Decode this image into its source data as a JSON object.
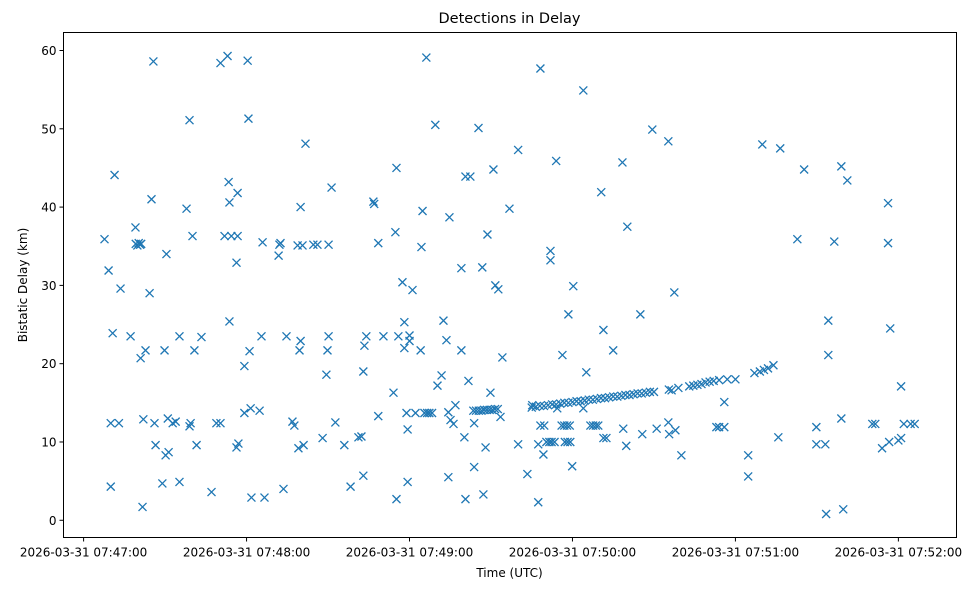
{
  "chart_data": {
    "type": "scatter",
    "title": "Detections in Delay",
    "xlabel": "Time (UTC)",
    "ylabel": "Bistatic Delay (km)",
    "x_unit": "seconds after 2026-03-31 07:47:00",
    "xlim": [
      -7.4,
      321.4
    ],
    "ylim": [
      -2.2,
      62.3
    ],
    "x_ticks": [
      {
        "value": 0,
        "label": "2026-03-31 07:47:00"
      },
      {
        "value": 60,
        "label": "2026-03-31 07:48:00"
      },
      {
        "value": 120,
        "label": "2026-03-31 07:49:00"
      },
      {
        "value": 180,
        "label": "2026-03-31 07:50:00"
      },
      {
        "value": 240,
        "label": "2026-03-31 07:51:00"
      },
      {
        "value": 300,
        "label": "2026-03-31 07:52:00"
      }
    ],
    "y_ticks": [
      {
        "value": 0,
        "label": "0"
      },
      {
        "value": 10,
        "label": "10"
      },
      {
        "value": 20,
        "label": "20"
      },
      {
        "value": 30,
        "label": "30"
      },
      {
        "value": 40,
        "label": "40"
      },
      {
        "value": 50,
        "label": "50"
      },
      {
        "value": 60,
        "label": "60"
      }
    ],
    "grid": false,
    "marker": "x",
    "color": "#1f77b4",
    "points": [
      [
        7.7,
        35.9
      ],
      [
        9.2,
        31.9
      ],
      [
        10,
        4.3
      ],
      [
        10,
        12.4
      ],
      [
        10.7,
        23.9
      ],
      [
        11.4,
        44.1
      ],
      [
        13,
        12.4
      ],
      [
        13.6,
        29.6
      ],
      [
        17.3,
        23.5
      ],
      [
        19.1,
        37.4
      ],
      [
        19.2,
        35.3
      ],
      [
        19.8,
        35.1
      ],
      [
        20.3,
        35.4
      ],
      [
        20.8,
        35.2
      ],
      [
        21.2,
        35.3
      ],
      [
        21,
        20.7
      ],
      [
        21.7,
        1.7
      ],
      [
        22,
        12.9
      ],
      [
        22.8,
        21.7
      ],
      [
        24.3,
        29.0
      ],
      [
        25,
        41.0
      ],
      [
        25.7,
        58.6
      ],
      [
        26.1,
        12.4
      ],
      [
        26.5,
        9.6
      ],
      [
        30.5,
        34.0
      ],
      [
        29,
        4.7
      ],
      [
        29.8,
        21.7
      ],
      [
        30.2,
        8.3
      ],
      [
        31,
        13
      ],
      [
        31.3,
        8.7
      ],
      [
        32.8,
        12.4
      ],
      [
        33.9,
        12.6
      ],
      [
        35.3,
        23.5
      ],
      [
        35.3,
        4.9
      ],
      [
        37.9,
        39.8
      ],
      [
        39,
        51.1
      ],
      [
        39,
        12.0
      ],
      [
        39.4,
        12.4
      ],
      [
        40.1,
        36.3
      ],
      [
        40.8,
        21.7
      ],
      [
        41.6,
        9.6
      ],
      [
        43.4,
        23.4
      ],
      [
        47.1,
        3.6
      ],
      [
        48.9,
        12.4
      ],
      [
        50.4,
        12.4
      ],
      [
        50.4,
        58.4
      ],
      [
        51.9,
        36.3
      ],
      [
        53,
        59.3
      ],
      [
        53.4,
        43.2
      ],
      [
        53.7,
        40.6
      ],
      [
        53.7,
        25.4
      ],
      [
        54.4,
        36.3
      ],
      [
        56.3,
        32.9
      ],
      [
        56.3,
        9.3
      ],
      [
        56.7,
        36.3
      ],
      [
        56.7,
        41.8
      ],
      [
        57,
        9.8
      ],
      [
        59.2,
        19.7
      ],
      [
        59.2,
        13.7
      ],
      [
        60.4,
        58.7
      ],
      [
        60.7,
        51.3
      ],
      [
        61.1,
        21.6
      ],
      [
        61.5,
        14.3
      ],
      [
        61.8,
        2.9
      ],
      [
        64.8,
        14
      ],
      [
        65.5,
        23.5
      ],
      [
        65.9,
        35.5
      ],
      [
        66.6,
        2.9
      ],
      [
        71.8,
        33.8
      ],
      [
        72.1,
        35.2
      ],
      [
        72.5,
        35.4
      ],
      [
        73.6,
        4
      ],
      [
        74.7,
        23.5
      ],
      [
        76.9,
        12.6
      ],
      [
        77.6,
        12.1
      ],
      [
        78.8,
        35.1
      ],
      [
        79.1,
        9.2
      ],
      [
        79.5,
        21.7
      ],
      [
        79.9,
        22.9
      ],
      [
        79.9,
        40.0
      ],
      [
        80.6,
        35.1
      ],
      [
        81,
        9.6
      ],
      [
        81.7,
        48.1
      ],
      [
        84.6,
        35.2
      ],
      [
        86.1,
        35.2
      ],
      [
        88,
        10.5
      ],
      [
        89.4,
        18.6
      ],
      [
        89.8,
        21.7
      ],
      [
        90.2,
        35.2
      ],
      [
        90.2,
        23.5
      ],
      [
        91.3,
        42.5
      ],
      [
        92.7,
        12.5
      ],
      [
        96,
        9.6
      ],
      [
        98.3,
        4.3
      ],
      [
        101.2,
        10.6
      ],
      [
        102.3,
        10.7
      ],
      [
        103,
        5.7
      ],
      [
        103,
        19.0
      ],
      [
        103.4,
        22.3
      ],
      [
        104.1,
        23.5
      ],
      [
        106.7,
        40.7
      ],
      [
        107,
        40.4
      ],
      [
        108.5,
        35.4
      ],
      [
        108.5,
        13.3
      ],
      [
        110.4,
        23.5
      ],
      [
        114.1,
        16.3
      ],
      [
        114.8,
        36.8
      ],
      [
        115.2,
        45
      ],
      [
        115.2,
        2.7
      ],
      [
        115.9,
        23.5
      ],
      [
        117.4,
        30.4
      ],
      [
        118.1,
        25.3
      ],
      [
        118.1,
        22
      ],
      [
        118.9,
        13.7
      ],
      [
        119.3,
        11.6
      ],
      [
        119.3,
        4.9
      ],
      [
        120,
        22.9
      ],
      [
        120,
        23.6
      ],
      [
        121.1,
        29.4
      ],
      [
        122.2,
        13.7
      ],
      [
        124.1,
        21.7
      ],
      [
        124.4,
        34.9
      ],
      [
        124.8,
        39.5
      ],
      [
        125.5,
        13.7
      ],
      [
        126.2,
        59.1
      ],
      [
        126.5,
        13.7
      ],
      [
        127.3,
        13.7
      ],
      [
        128.3,
        13.7
      ],
      [
        129.5,
        50.5
      ],
      [
        130.3,
        17.2
      ],
      [
        131.8,
        18.5
      ],
      [
        132.5,
        25.5
      ],
      [
        133.6,
        23
      ],
      [
        134.3,
        13.8
      ],
      [
        134.3,
        5.5
      ],
      [
        134.7,
        38.7
      ],
      [
        135.1,
        12.8
      ],
      [
        136.2,
        12.3
      ],
      [
        136.9,
        14.7
      ],
      [
        139.1,
        21.7
      ],
      [
        139.1,
        32.2
      ],
      [
        140.2,
        10.6
      ],
      [
        140.6,
        2.7
      ],
      [
        140.6,
        43.9
      ],
      [
        141.7,
        17.8
      ],
      [
        142.4,
        43.9
      ],
      [
        143.8,
        12.4
      ],
      [
        143.8,
        6.8
      ],
      [
        145.4,
        50.1
      ],
      [
        146.8,
        32.3
      ],
      [
        147.2,
        3.3
      ],
      [
        148,
        9.3
      ],
      [
        148.7,
        36.5
      ],
      [
        149.8,
        16.3
      ],
      [
        150.9,
        44.8
      ],
      [
        151.6,
        30
      ],
      [
        152.7,
        29.5
      ],
      [
        153.5,
        13.2
      ],
      [
        154.2,
        20.8
      ],
      [
        156.8,
        39.8
      ],
      [
        143.5,
        14.0
      ],
      [
        144.5,
        14.0
      ],
      [
        145.5,
        14.0
      ],
      [
        146.5,
        14.0
      ],
      [
        147.5,
        14.1
      ],
      [
        148.5,
        14.1
      ],
      [
        149.5,
        14.1
      ],
      [
        150.5,
        14.1
      ],
      [
        151.5,
        14.2
      ],
      [
        152.5,
        14.2
      ],
      [
        160,
        47.3
      ],
      [
        160,
        9.7
      ],
      [
        163.4,
        5.9
      ],
      [
        165.2,
        14.7
      ],
      [
        167.4,
        9.7
      ],
      [
        167.4,
        2.3
      ],
      [
        168.2,
        57.7
      ],
      [
        168.2,
        12.1
      ],
      [
        169.3,
        8.4
      ],
      [
        169.6,
        12.1
      ],
      [
        170.4,
        10
      ],
      [
        171.5,
        10
      ],
      [
        171.9,
        34.4
      ],
      [
        171.9,
        33.2
      ],
      [
        172.3,
        10
      ],
      [
        173.4,
        10
      ],
      [
        174,
        45.9
      ],
      [
        174.4,
        14.3
      ],
      [
        176,
        12.1
      ],
      [
        177,
        12.1
      ],
      [
        178,
        12.1
      ],
      [
        179,
        12.1
      ],
      [
        176.3,
        21.1
      ],
      [
        177.2,
        10
      ],
      [
        178.2,
        10
      ],
      [
        179.2,
        10
      ],
      [
        178.5,
        26.3
      ],
      [
        180.3,
        29.9
      ],
      [
        179.9,
        6.9
      ],
      [
        184,
        54.9
      ],
      [
        184,
        14.3
      ],
      [
        185.1,
        18.9
      ],
      [
        186.6,
        12.1
      ],
      [
        187.6,
        12.1
      ],
      [
        188.6,
        12.1
      ],
      [
        189.5,
        12.1
      ],
      [
        190.6,
        41.9
      ],
      [
        191.4,
        24.3
      ],
      [
        191.4,
        10.5
      ],
      [
        192.5,
        10.5
      ],
      [
        195,
        21.7
      ],
      [
        198.4,
        45.7
      ],
      [
        198.7,
        11.7
      ],
      [
        199.8,
        9.5
      ],
      [
        200.2,
        37.5
      ],
      [
        205,
        26.3
      ],
      [
        205.7,
        11
      ],
      [
        209.4,
        49.9
      ],
      [
        211,
        11.7
      ],
      [
        215.3,
        48.4
      ],
      [
        215.3,
        12.5
      ],
      [
        215.6,
        11
      ],
      [
        217.5,
        29.1
      ],
      [
        217.9,
        11.5
      ],
      [
        220.1,
        8.3
      ],
      [
        233,
        11.9
      ],
      [
        234,
        11.9
      ],
      [
        235.9,
        11.9
      ],
      [
        235.9,
        15.1
      ],
      [
        244.7,
        8.3
      ],
      [
        244.7,
        5.6
      ],
      [
        249.9,
        48
      ],
      [
        255.8,
        10.6
      ],
      [
        256.5,
        47.5
      ],
      [
        262.8,
        35.9
      ],
      [
        265.3,
        44.8
      ],
      [
        269.8,
        11.9
      ],
      [
        269.8,
        9.7
      ],
      [
        273.1,
        9.7
      ],
      [
        273.4,
        0.8
      ],
      [
        274.2,
        25.5
      ],
      [
        274.2,
        21.1
      ],
      [
        276.4,
        35.6
      ],
      [
        279,
        13
      ],
      [
        279,
        45.2
      ],
      [
        279.7,
        1.4
      ],
      [
        281.2,
        43.4
      ],
      [
        290.4,
        12.3
      ],
      [
        291.5,
        12.3
      ],
      [
        294,
        9.2
      ],
      [
        296.2,
        40.5
      ],
      [
        296.2,
        35.4
      ],
      [
        296.6,
        10
      ],
      [
        297,
        24.5
      ],
      [
        300,
        10.2
      ],
      [
        301,
        10.5
      ],
      [
        301,
        17.1
      ],
      [
        302,
        12.3
      ],
      [
        304.5,
        12.3
      ],
      [
        306,
        12.3
      ],
      [
        165,
        14.4
      ],
      [
        166.5,
        14.5
      ],
      [
        168,
        14.6
      ],
      [
        169.5,
        14.6
      ],
      [
        171,
        14.7
      ],
      [
        172.5,
        14.8
      ],
      [
        174,
        14.8
      ],
      [
        175.5,
        14.9
      ],
      [
        177,
        15.0
      ],
      [
        178.5,
        15.0
      ],
      [
        180,
        15.1
      ],
      [
        181.5,
        15.2
      ],
      [
        183,
        15.2
      ],
      [
        184.5,
        15.3
      ],
      [
        186,
        15.4
      ],
      [
        187.5,
        15.4
      ],
      [
        189,
        15.5
      ],
      [
        190.5,
        15.6
      ],
      [
        192,
        15.6
      ],
      [
        193.5,
        15.7
      ],
      [
        195,
        15.8
      ],
      [
        196.5,
        15.8
      ],
      [
        198,
        15.9
      ],
      [
        199.5,
        16.0
      ],
      [
        201,
        16.0
      ],
      [
        202.5,
        16.1
      ],
      [
        204,
        16.2
      ],
      [
        205.5,
        16.2
      ],
      [
        207,
        16.3
      ],
      [
        208.5,
        16.4
      ],
      [
        210,
        16.4
      ],
      [
        215.5,
        16.7
      ],
      [
        216.5,
        16.6
      ],
      [
        219,
        16.9
      ],
      [
        223,
        17.1
      ],
      [
        224.5,
        17.2
      ],
      [
        226,
        17.3
      ],
      [
        227.5,
        17.4
      ],
      [
        229,
        17.6
      ],
      [
        230.5,
        17.7
      ],
      [
        232,
        17.8
      ],
      [
        234,
        17.9
      ],
      [
        237,
        18.0
      ],
      [
        240,
        18.0
      ],
      [
        247,
        18.8
      ],
      [
        249,
        19.0
      ],
      [
        250.5,
        19.2
      ],
      [
        252,
        19.4
      ],
      [
        254,
        19.8
      ]
    ]
  }
}
